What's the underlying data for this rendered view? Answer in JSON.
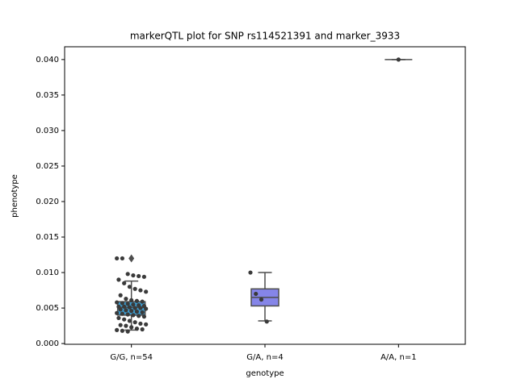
{
  "chart_data": {
    "type": "box",
    "title": "markerQTL plot for SNP rs114521391 and marker_3933",
    "x_label": "genotype",
    "y_label": "phenotype",
    "categories": [
      "G/G, n=54",
      "G/A, n=4",
      "A/A, n=1"
    ],
    "ylim": [
      -0.0001,
      0.0418
    ],
    "yticks": [
      {
        "value": 0,
        "label": "0.000"
      },
      {
        "value": 0.005,
        "label": "0.005"
      },
      {
        "value": 0.01,
        "label": "0.010"
      },
      {
        "value": 0.015,
        "label": "0.015"
      },
      {
        "value": 0.02,
        "label": "0.020"
      },
      {
        "value": 0.025,
        "label": "0.025"
      },
      {
        "value": 0.03,
        "label": "0.030"
      },
      {
        "value": 0.035,
        "label": "0.035"
      },
      {
        "value": 0.04,
        "label": "0.040"
      }
    ],
    "point_color": "#3a3a3a",
    "boxes": [
      {
        "color": "#3d9fd3",
        "whislo": 0.0019,
        "q1": 0.004,
        "med": 0.0051,
        "q3": 0.0059,
        "whishi": 0.0088,
        "fliers": [
          0.012
        ],
        "points": [
          0.012,
          0.012,
          0.0098,
          0.0096,
          0.0095,
          0.0094,
          0.009,
          0.0085,
          0.008,
          0.0077,
          0.0075,
          0.0073,
          0.0068,
          0.0063,
          0.0061,
          0.006,
          0.0059,
          0.0058,
          0.0057,
          0.0056,
          0.0055,
          0.0054,
          0.0053,
          0.0052,
          0.0052,
          0.0051,
          0.005,
          0.005,
          0.0049,
          0.0048,
          0.0047,
          0.0046,
          0.0045,
          0.0044,
          0.0043,
          0.0042,
          0.0041,
          0.004,
          0.0039,
          0.0038,
          0.0036,
          0.0034,
          0.0032,
          0.003,
          0.0028,
          0.0027,
          0.0026,
          0.0025,
          0.0023,
          0.0021,
          0.002,
          0.0019,
          0.0018,
          0.0017
        ]
      },
      {
        "color": "#8585e8",
        "whislo": 0.0032,
        "q1": 0.0053,
        "med": 0.0065,
        "q3": 0.0077,
        "whishi": 0.01,
        "fliers": [],
        "points": [
          0.01,
          0.007,
          0.0062,
          0.0031
        ]
      },
      {
        "color": "#a56fd6",
        "whislo": 0.04,
        "q1": 0.04,
        "med": 0.04,
        "q3": 0.04,
        "whishi": 0.04,
        "fliers": [],
        "points": [
          0.04
        ]
      }
    ]
  }
}
